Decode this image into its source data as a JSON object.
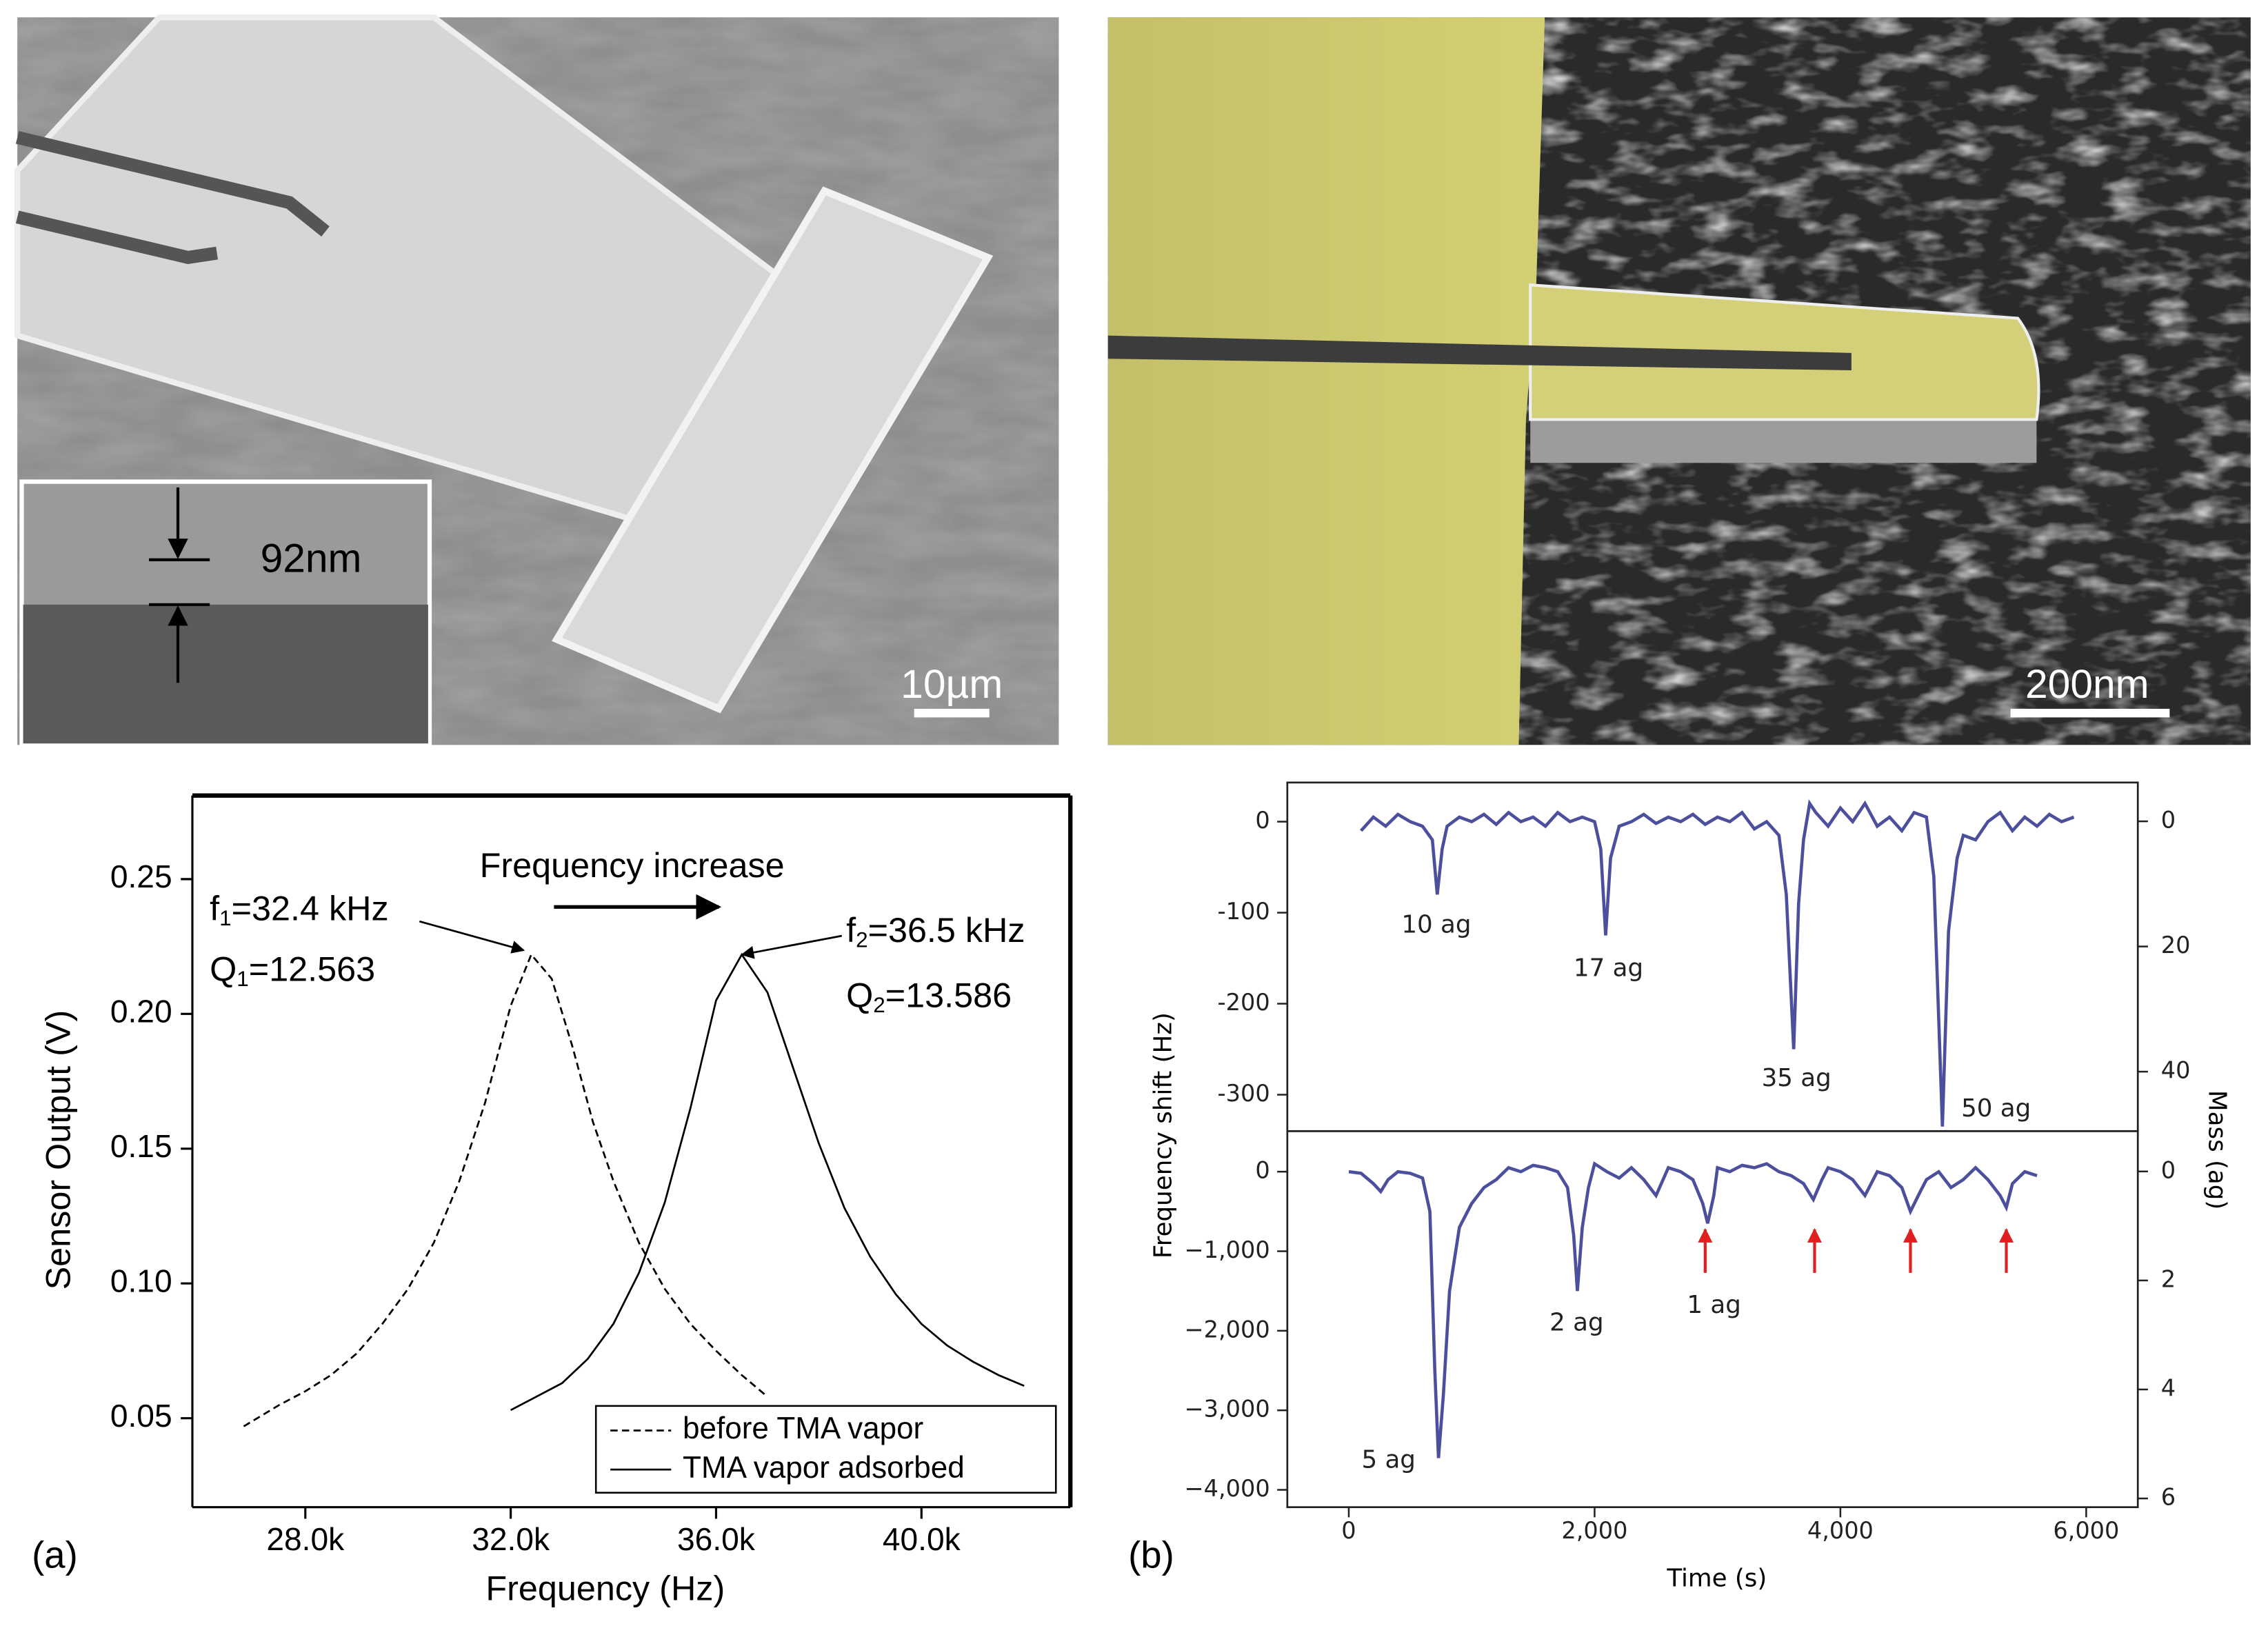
{
  "images": [
    {
      "scale_bar": "10µm",
      "inset_label": "92nm"
    },
    {
      "scale_bar": "200nm"
    }
  ],
  "panel_labels": [
    "(a)",
    "(b)"
  ],
  "chart_data": [
    {
      "type": "line",
      "xlabel": "Frequency (Hz)",
      "ylabel": "Sensor Output (V)",
      "xlim": [
        25800,
        42900
      ],
      "ylim": [
        0.017,
        0.281
      ],
      "xticks": [
        {
          "value": 28000,
          "label": "28.0k"
        },
        {
          "value": 32000,
          "label": "32.0k"
        },
        {
          "value": 36000,
          "label": "36.0k"
        },
        {
          "value": 40000,
          "label": "40.0k"
        }
      ],
      "yticks": [
        0.05,
        {
          "value": 0.1,
          "label": "0.10"
        },
        0.15,
        {
          "value": 0.2,
          "label": "0.20"
        },
        0.25
      ],
      "legend": "lower right",
      "annotations": [
        {
          "text": "Frequency increase"
        },
        {
          "parts": [
            "f",
            "1",
            "=32.4 kHz"
          ]
        },
        {
          "parts": [
            "Q",
            "1",
            "=12.563"
          ]
        },
        {
          "parts": [
            "f",
            "2",
            "=36.5 kHz"
          ]
        },
        {
          "parts": [
            "Q",
            "2",
            "=13.586"
          ]
        }
      ],
      "series": [
        {
          "name": "before TMA vapor",
          "color": "#000000",
          "linestyle": "dashed",
          "x": [
            26800,
            27500,
            28000,
            28500,
            29000,
            29500,
            30000,
            30500,
            31000,
            31500,
            32000,
            32400,
            32800,
            33200,
            33600,
            34000,
            34500,
            35000,
            35500,
            36000,
            36500,
            37000
          ],
          "values": [
            0.047,
            0.055,
            0.06,
            0.066,
            0.074,
            0.085,
            0.098,
            0.115,
            0.138,
            0.167,
            0.203,
            0.222,
            0.213,
            0.188,
            0.16,
            0.138,
            0.115,
            0.098,
            0.085,
            0.075,
            0.066,
            0.058
          ]
        },
        {
          "name": "TMA vapor adsorbed",
          "color": "#000000",
          "linestyle": "solid",
          "x": [
            32000,
            32500,
            33000,
            33500,
            34000,
            34500,
            35000,
            35500,
            36000,
            36500,
            37000,
            37500,
            38000,
            38500,
            39000,
            39500,
            40000,
            40500,
            41000,
            41500,
            42000
          ],
          "values": [
            0.053,
            0.058,
            0.063,
            0.072,
            0.085,
            0.104,
            0.13,
            0.165,
            0.205,
            0.222,
            0.208,
            0.18,
            0.152,
            0.128,
            0.11,
            0.096,
            0.085,
            0.077,
            0.071,
            0.066,
            0.062
          ]
        }
      ]
    },
    {
      "type": "line",
      "ylabel": "Frequency shift (Hz)",
      "y2label": "Mass (ag)",
      "xlim": [
        -500,
        6420
      ],
      "ylim": [
        -340,
        43
      ],
      "y2lim": [
        49.5,
        -6.2
      ],
      "yticks": [
        0,
        -100,
        -200,
        -300
      ],
      "y2ticks": [
        0,
        20,
        40
      ],
      "annotations": [
        "10 ag",
        "17 ag",
        "35 ag",
        "50 ag"
      ],
      "series": [
        {
          "color": "#4b4f9c",
          "x": [
            100,
            200,
            300,
            400,
            500,
            600,
            680,
            720,
            760,
            800,
            900,
            1000,
            1100,
            1200,
            1300,
            1400,
            1500,
            1600,
            1700,
            1800,
            1900,
            2000,
            2050,
            2090,
            2130,
            2200,
            2300,
            2400,
            2500,
            2600,
            2700,
            2800,
            2900,
            3000,
            3100,
            3200,
            3300,
            3400,
            3500,
            3560,
            3620,
            3660,
            3700,
            3750,
            3800,
            3900,
            4000,
            4100,
            4200,
            4300,
            4400,
            4500,
            4600,
            4700,
            4760,
            4830,
            4880,
            4950,
            5000,
            5100,
            5200,
            5300,
            5400,
            5500,
            5600,
            5700,
            5800,
            5900
          ],
          "values": [
            -10,
            5,
            -5,
            8,
            0,
            -5,
            -20,
            -80,
            -30,
            -5,
            5,
            0,
            8,
            -3,
            10,
            0,
            5,
            -5,
            10,
            0,
            5,
            0,
            -30,
            -125,
            -40,
            -5,
            0,
            8,
            -2,
            5,
            0,
            8,
            -3,
            5,
            0,
            10,
            -8,
            0,
            -15,
            -80,
            -250,
            -90,
            -20,
            20,
            10,
            -5,
            15,
            0,
            20,
            -5,
            5,
            -10,
            10,
            5,
            -60,
            -335,
            -120,
            -40,
            -15,
            -20,
            0,
            10,
            -10,
            5,
            -5,
            8,
            0,
            5
          ]
        }
      ]
    },
    {
      "type": "line",
      "xlabel": "Time (s)",
      "xlim": [
        -500,
        6420
      ],
      "ylim": [
        -4218,
        510
      ],
      "y2lim": [
        6.16,
        -0.74
      ],
      "xticks": [
        0,
        {
          "value": 2000,
          "label": "2,000"
        },
        {
          "value": 4000,
          "label": "4,000"
        },
        {
          "value": 6000,
          "label": "6,000"
        }
      ],
      "yticks": [
        0,
        {
          "value": -1000,
          "label": "−1,000"
        },
        {
          "value": -2000,
          "label": "−2,000"
        },
        {
          "value": -3000,
          "label": "−3,000"
        },
        {
          "value": -4000,
          "label": "−4,000"
        }
      ],
      "y2ticks": [
        0,
        2,
        4,
        6
      ],
      "annotations": [
        "5 ag",
        "2 ag",
        "1 ag"
      ],
      "markers_x": [
        2900,
        3790,
        4570,
        5350
      ],
      "marker_color": "#e02020",
      "series": [
        {
          "color": "#4b4f9c",
          "x": [
            0,
            100,
            200,
            260,
            320,
            400,
            500,
            600,
            660,
            700,
            730,
            770,
            820,
            900,
            1000,
            1100,
            1200,
            1300,
            1400,
            1500,
            1600,
            1700,
            1780,
            1830,
            1860,
            1900,
            1950,
            2000,
            2100,
            2200,
            2300,
            2400,
            2500,
            2600,
            2700,
            2800,
            2880,
            2920,
            2970,
            3000,
            3100,
            3200,
            3300,
            3400,
            3500,
            3600,
            3700,
            3780,
            3850,
            3900,
            4000,
            4100,
            4200,
            4300,
            4400,
            4500,
            4570,
            4650,
            4700,
            4800,
            4900,
            5000,
            5100,
            5200,
            5300,
            5350,
            5400,
            5500,
            5600
          ],
          "values": [
            0,
            -20,
            -150,
            -250,
            -100,
            0,
            -20,
            -80,
            -500,
            -2500,
            -3600,
            -2800,
            -1500,
            -700,
            -400,
            -200,
            -100,
            50,
            0,
            80,
            50,
            0,
            -200,
            -800,
            -1500,
            -700,
            -200,
            100,
            0,
            -80,
            50,
            -100,
            -300,
            50,
            0,
            -100,
            -400,
            -650,
            -300,
            50,
            0,
            80,
            50,
            100,
            0,
            -50,
            -150,
            -350,
            -100,
            50,
            0,
            -100,
            -300,
            0,
            -50,
            -200,
            -500,
            -250,
            -100,
            0,
            -200,
            -100,
            50,
            -100,
            -300,
            -450,
            -150,
            0,
            -50
          ]
        }
      ]
    }
  ]
}
